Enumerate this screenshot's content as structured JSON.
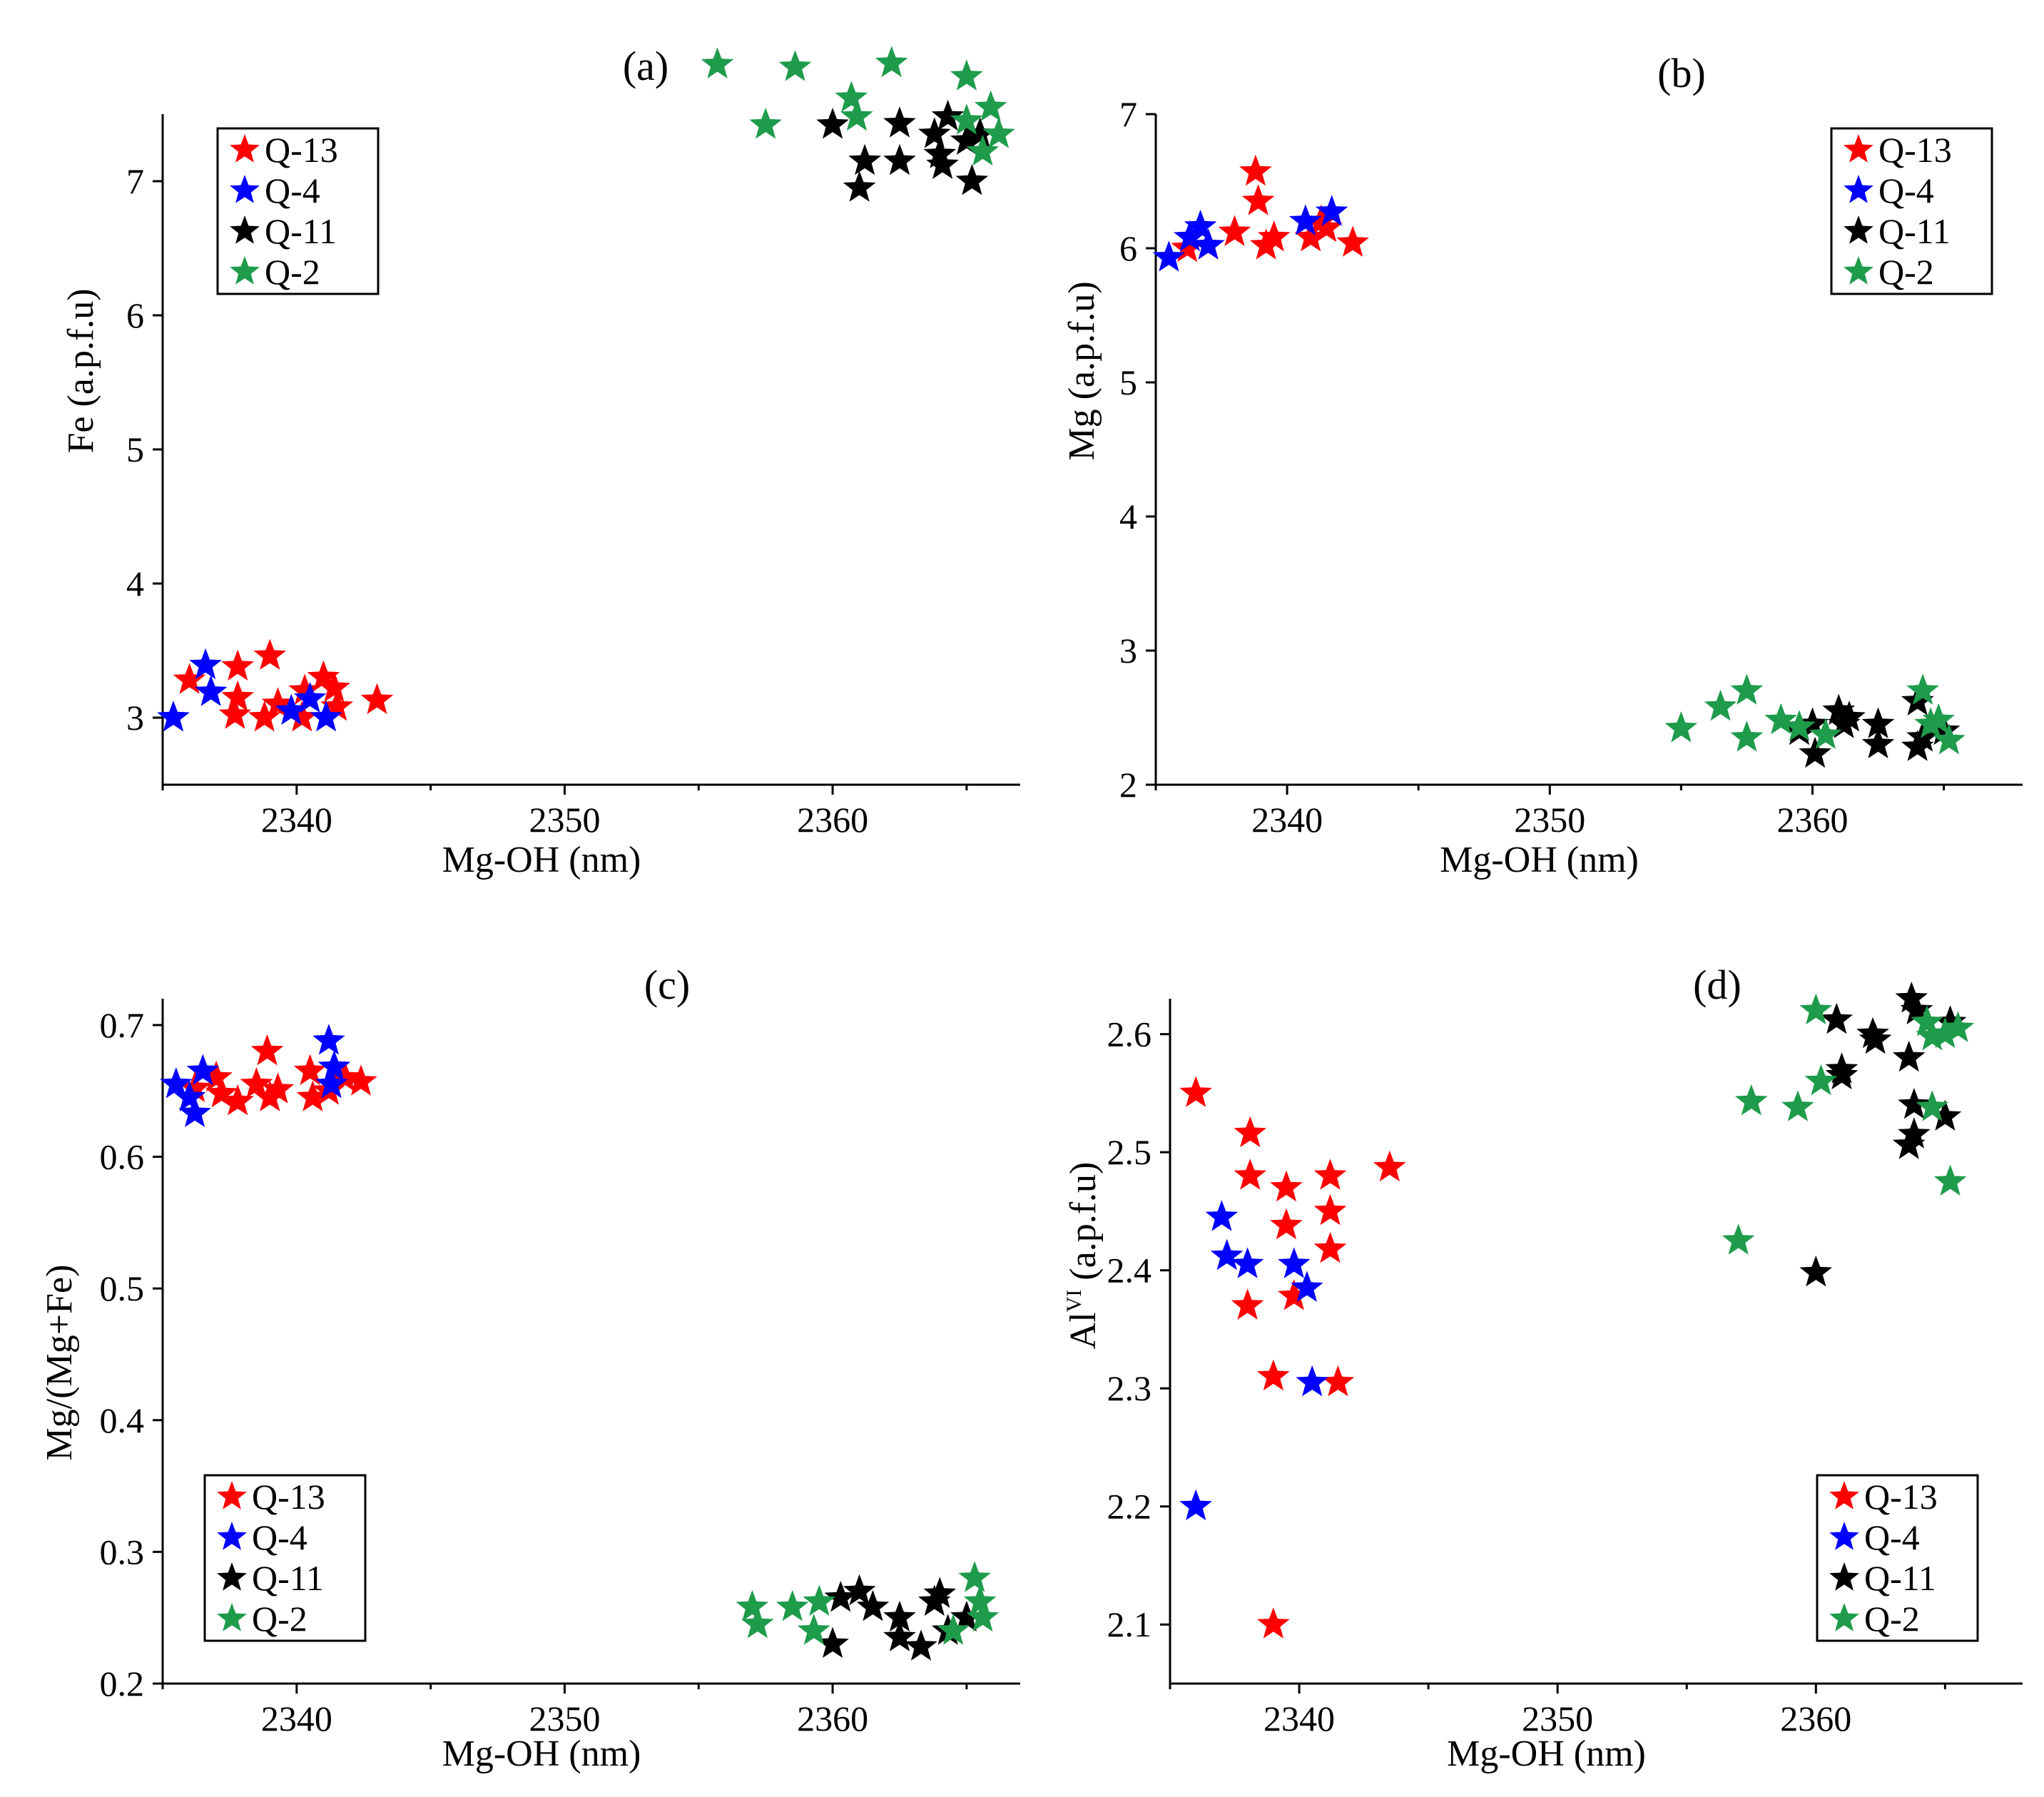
{
  "colors": {
    "Q-13": "#ff0000",
    "Q-4": "#0000ff",
    "Q-11": "#000000",
    "Q-2": "#1e9b4b"
  },
  "chart_data": [
    {
      "type": "scatter",
      "panel_label": "(a)",
      "xlabel": "Mg-OH (nm)",
      "ylabel": "Fe (a.p.f.u)",
      "xlim": [
        2335,
        2367
      ],
      "ylim": [
        2.5,
        7.5
      ],
      "xticks": [
        2340,
        2350,
        2360
      ],
      "yticks": [
        3,
        4,
        5,
        6,
        7
      ],
      "xtick_labels": [
        "2340",
        "2350",
        "2360"
      ],
      "ytick_labels": [
        "3",
        "4",
        "5",
        "6",
        "7"
      ],
      "legend": "top-left",
      "series": [
        {
          "name": "Q-13",
          "points": [
            [
              2336,
              3.28
            ],
            [
              2337.8,
              3.38
            ],
            [
              2337.8,
              3.15
            ],
            [
              2337.7,
              3.02
            ],
            [
              2339,
              3.46
            ],
            [
              2338.8,
              3.0
            ],
            [
              2339.3,
              3.1
            ],
            [
              2340.3,
              3.2
            ],
            [
              2340.2,
              3.0
            ],
            [
              2341,
              3.3
            ],
            [
              2341.4,
              3.22
            ],
            [
              2341.5,
              3.08
            ],
            [
              2343,
              3.13
            ]
          ]
        },
        {
          "name": "Q-4",
          "points": [
            [
              2335.4,
              3.0
            ],
            [
              2336.6,
              3.39
            ],
            [
              2336.8,
              3.19
            ],
            [
              2339.8,
              3.05
            ],
            [
              2340.5,
              3.14
            ],
            [
              2341.1,
              3.0
            ]
          ]
        },
        {
          "name": "Q-11",
          "points": [
            [
              2360,
              7.42
            ],
            [
              2361.2,
              7.15
            ],
            [
              2361,
              6.95
            ],
            [
              2362.5,
              7.43
            ],
            [
              2362.5,
              7.15
            ],
            [
              2363.8,
              7.35
            ],
            [
              2364,
              7.2
            ],
            [
              2364.3,
              7.48
            ],
            [
              2364.1,
              7.12
            ],
            [
              2365,
              7.3
            ],
            [
              2365.2,
              7.0
            ],
            [
              2365.5,
              7.35
            ]
          ]
        },
        {
          "name": "Q-2",
          "points": [
            [
              2355.7,
              7.87
            ],
            [
              2357.5,
              7.42
            ],
            [
              2358.6,
              7.85
            ],
            [
              2360.7,
              7.62
            ],
            [
              2360.9,
              7.48
            ],
            [
              2362.2,
              7.88
            ],
            [
              2365,
              7.78
            ],
            [
              2365,
              7.45
            ],
            [
              2365.9,
              7.55
            ],
            [
              2366.2,
              7.35
            ],
            [
              2365.6,
              7.22
            ]
          ]
        }
      ]
    },
    {
      "type": "scatter",
      "panel_label": "(b)",
      "xlabel": "Mg-OH (nm)",
      "ylabel": "Mg (a.p.f.u)",
      "xlim": [
        2335,
        2368
      ],
      "ylim": [
        2,
        7
      ],
      "xticks": [
        2340,
        2350,
        2360
      ],
      "yticks": [
        2,
        3,
        4,
        5,
        6,
        7
      ],
      "xtick_labels": [
        "2340",
        "2350",
        "2360"
      ],
      "ytick_labels": [
        "2",
        "3",
        "4",
        "5",
        "6",
        "7"
      ],
      "legend": "top-right",
      "series": [
        {
          "name": "Q-13",
          "points": [
            [
              2336.2,
              6.0
            ],
            [
              2337,
              6.02
            ],
            [
              2338,
              6.12
            ],
            [
              2338.8,
              6.57
            ],
            [
              2338.9,
              6.35
            ],
            [
              2339.2,
              6.02
            ],
            [
              2339.5,
              6.08
            ],
            [
              2340.9,
              6.08
            ],
            [
              2341.3,
              6.2
            ],
            [
              2341.5,
              6.15
            ],
            [
              2342.5,
              6.04
            ]
          ]
        },
        {
          "name": "Q-4",
          "points": [
            [
              2335.5,
              5.93
            ],
            [
              2336.3,
              6.08
            ],
            [
              2336.7,
              6.16
            ],
            [
              2337,
              6.02
            ],
            [
              2340.7,
              6.2
            ],
            [
              2341.7,
              6.27
            ]
          ]
        },
        {
          "name": "Q-11",
          "points": [
            [
              2359.5,
              2.4
            ],
            [
              2360,
              2.45
            ],
            [
              2360.1,
              2.23
            ],
            [
              2361,
              2.55
            ],
            [
              2361.2,
              2.45
            ],
            [
              2361.4,
              2.5
            ],
            [
              2362.5,
              2.45
            ],
            [
              2362.5,
              2.3
            ],
            [
              2364,
              2.62
            ],
            [
              2364.2,
              2.35
            ],
            [
              2364,
              2.28
            ],
            [
              2365,
              2.4
            ]
          ]
        },
        {
          "name": "Q-2",
          "points": [
            [
              2355,
              2.42
            ],
            [
              2356.5,
              2.58
            ],
            [
              2357.5,
              2.7
            ],
            [
              2357.5,
              2.35
            ],
            [
              2358.8,
              2.48
            ],
            [
              2359.5,
              2.43
            ],
            [
              2360.5,
              2.37
            ],
            [
              2364.2,
              2.7
            ],
            [
              2364.5,
              2.45
            ],
            [
              2364.8,
              2.48
            ],
            [
              2365.2,
              2.33
            ]
          ]
        }
      ]
    },
    {
      "type": "scatter",
      "panel_label": "(c)",
      "xlabel": "Mg-OH (nm)",
      "ylabel": "Mg/(Mg+Fe)",
      "xlim": [
        2335,
        2367
      ],
      "ylim": [
        0.2,
        0.72
      ],
      "xticks": [
        2340,
        2350,
        2360
      ],
      "yticks": [
        0.2,
        0.3,
        0.4,
        0.5,
        0.6,
        0.7
      ],
      "xtick_labels": [
        "2340",
        "2350",
        "2360"
      ],
      "ytick_labels": [
        "0.2",
        "0.3",
        "0.4",
        "0.5",
        "0.6",
        "0.7"
      ],
      "legend": "bottom-left",
      "series": [
        {
          "name": "Q-13",
          "points": [
            [
              2336.2,
              0.652
            ],
            [
              2337,
              0.66
            ],
            [
              2337.2,
              0.648
            ],
            [
              2337.8,
              0.642
            ],
            [
              2338.5,
              0.655
            ],
            [
              2338.9,
              0.68
            ],
            [
              2339,
              0.645
            ],
            [
              2339.3,
              0.651
            ],
            [
              2340.5,
              0.665
            ],
            [
              2340.6,
              0.645
            ],
            [
              2341.2,
              0.65
            ],
            [
              2341.8,
              0.66
            ],
            [
              2342.4,
              0.657
            ]
          ]
        },
        {
          "name": "Q-4",
          "points": [
            [
              2335.5,
              0.655
            ],
            [
              2336,
              0.645
            ],
            [
              2336.5,
              0.665
            ],
            [
              2336.2,
              0.633
            ],
            [
              2341.2,
              0.688
            ],
            [
              2341.4,
              0.668
            ],
            [
              2341.3,
              0.655
            ]
          ]
        },
        {
          "name": "Q-11",
          "points": [
            [
              2360,
              0.23
            ],
            [
              2360.3,
              0.265
            ],
            [
              2361,
              0.27
            ],
            [
              2361.5,
              0.258
            ],
            [
              2362.5,
              0.25
            ],
            [
              2362.5,
              0.235
            ],
            [
              2363.3,
              0.228
            ],
            [
              2363.8,
              0.262
            ],
            [
              2364,
              0.268
            ],
            [
              2364.3,
              0.24
            ],
            [
              2365,
              0.25
            ]
          ]
        },
        {
          "name": "Q-2",
          "points": [
            [
              2357,
              0.258
            ],
            [
              2357.2,
              0.245
            ],
            [
              2358.5,
              0.258
            ],
            [
              2359.5,
              0.262
            ],
            [
              2359.3,
              0.24
            ],
            [
              2364.5,
              0.24
            ],
            [
              2365.3,
              0.28
            ],
            [
              2365.6,
              0.25
            ],
            [
              2365.5,
              0.262
            ]
          ]
        }
      ]
    },
    {
      "type": "scatter",
      "panel_label": "(d)",
      "xlabel": "Mg-OH (nm)",
      "ylabel_main": "Al",
      "ylabel_sup": "VI",
      "ylabel_tail": " (a.p.f.u)",
      "xlim": [
        2335,
        2368
      ],
      "ylim": [
        2.05,
        2.63
      ],
      "xticks": [
        2340,
        2350,
        2360
      ],
      "yticks": [
        2.1,
        2.2,
        2.3,
        2.4,
        2.5,
        2.6
      ],
      "xtick_labels": [
        "2340",
        "2350",
        "2360"
      ],
      "ytick_labels": [
        "2.1",
        "2.2",
        "2.3",
        "2.4",
        "2.5",
        "2.6"
      ],
      "legend": "bottom-right",
      "series": [
        {
          "name": "Q-13",
          "points": [
            [
              2336,
              2.55
            ],
            [
              2338.1,
              2.516
            ],
            [
              2338.1,
              2.48
            ],
            [
              2338,
              2.37
            ],
            [
              2339,
              2.31
            ],
            [
              2339,
              2.1
            ],
            [
              2339.5,
              2.47
            ],
            [
              2339.5,
              2.438
            ],
            [
              2339.8,
              2.378
            ],
            [
              2341.2,
              2.48
            ],
            [
              2341.2,
              2.45
            ],
            [
              2341.2,
              2.418
            ],
            [
              2341.5,
              2.305
            ],
            [
              2343.5,
              2.487
            ]
          ]
        },
        {
          "name": "Q-4",
          "points": [
            [
              2336,
              2.2
            ],
            [
              2337,
              2.445
            ],
            [
              2337.2,
              2.412
            ],
            [
              2338,
              2.405
            ],
            [
              2339.8,
              2.405
            ],
            [
              2340.3,
              2.385
            ],
            [
              2340.5,
              2.305
            ]
          ]
        },
        {
          "name": "Q-11",
          "points": [
            [
              2360,
              2.398
            ],
            [
              2360.8,
              2.612
            ],
            [
              2361,
              2.57
            ],
            [
              2361,
              2.565
            ],
            [
              2362.2,
              2.6
            ],
            [
              2362.3,
              2.595
            ],
            [
              2363.7,
              2.63
            ],
            [
              2363.9,
              2.62
            ],
            [
              2363.6,
              2.58
            ],
            [
              2363.8,
              2.54
            ],
            [
              2363.6,
              2.506
            ],
            [
              2363.8,
              2.515
            ],
            [
              2365,
              2.53
            ],
            [
              2365.2,
              2.61
            ]
          ]
        },
        {
          "name": "Q-2",
          "points": [
            [
              2357,
              2.425
            ],
            [
              2357.5,
              2.543
            ],
            [
              2359.3,
              2.538
            ],
            [
              2360,
              2.62
            ],
            [
              2360.2,
              2.56
            ],
            [
              2364.3,
              2.61
            ],
            [
              2364.5,
              2.598
            ],
            [
              2364.5,
              2.538
            ],
            [
              2365,
              2.6
            ],
            [
              2365.2,
              2.475
            ],
            [
              2365.5,
              2.605
            ]
          ]
        }
      ]
    }
  ]
}
